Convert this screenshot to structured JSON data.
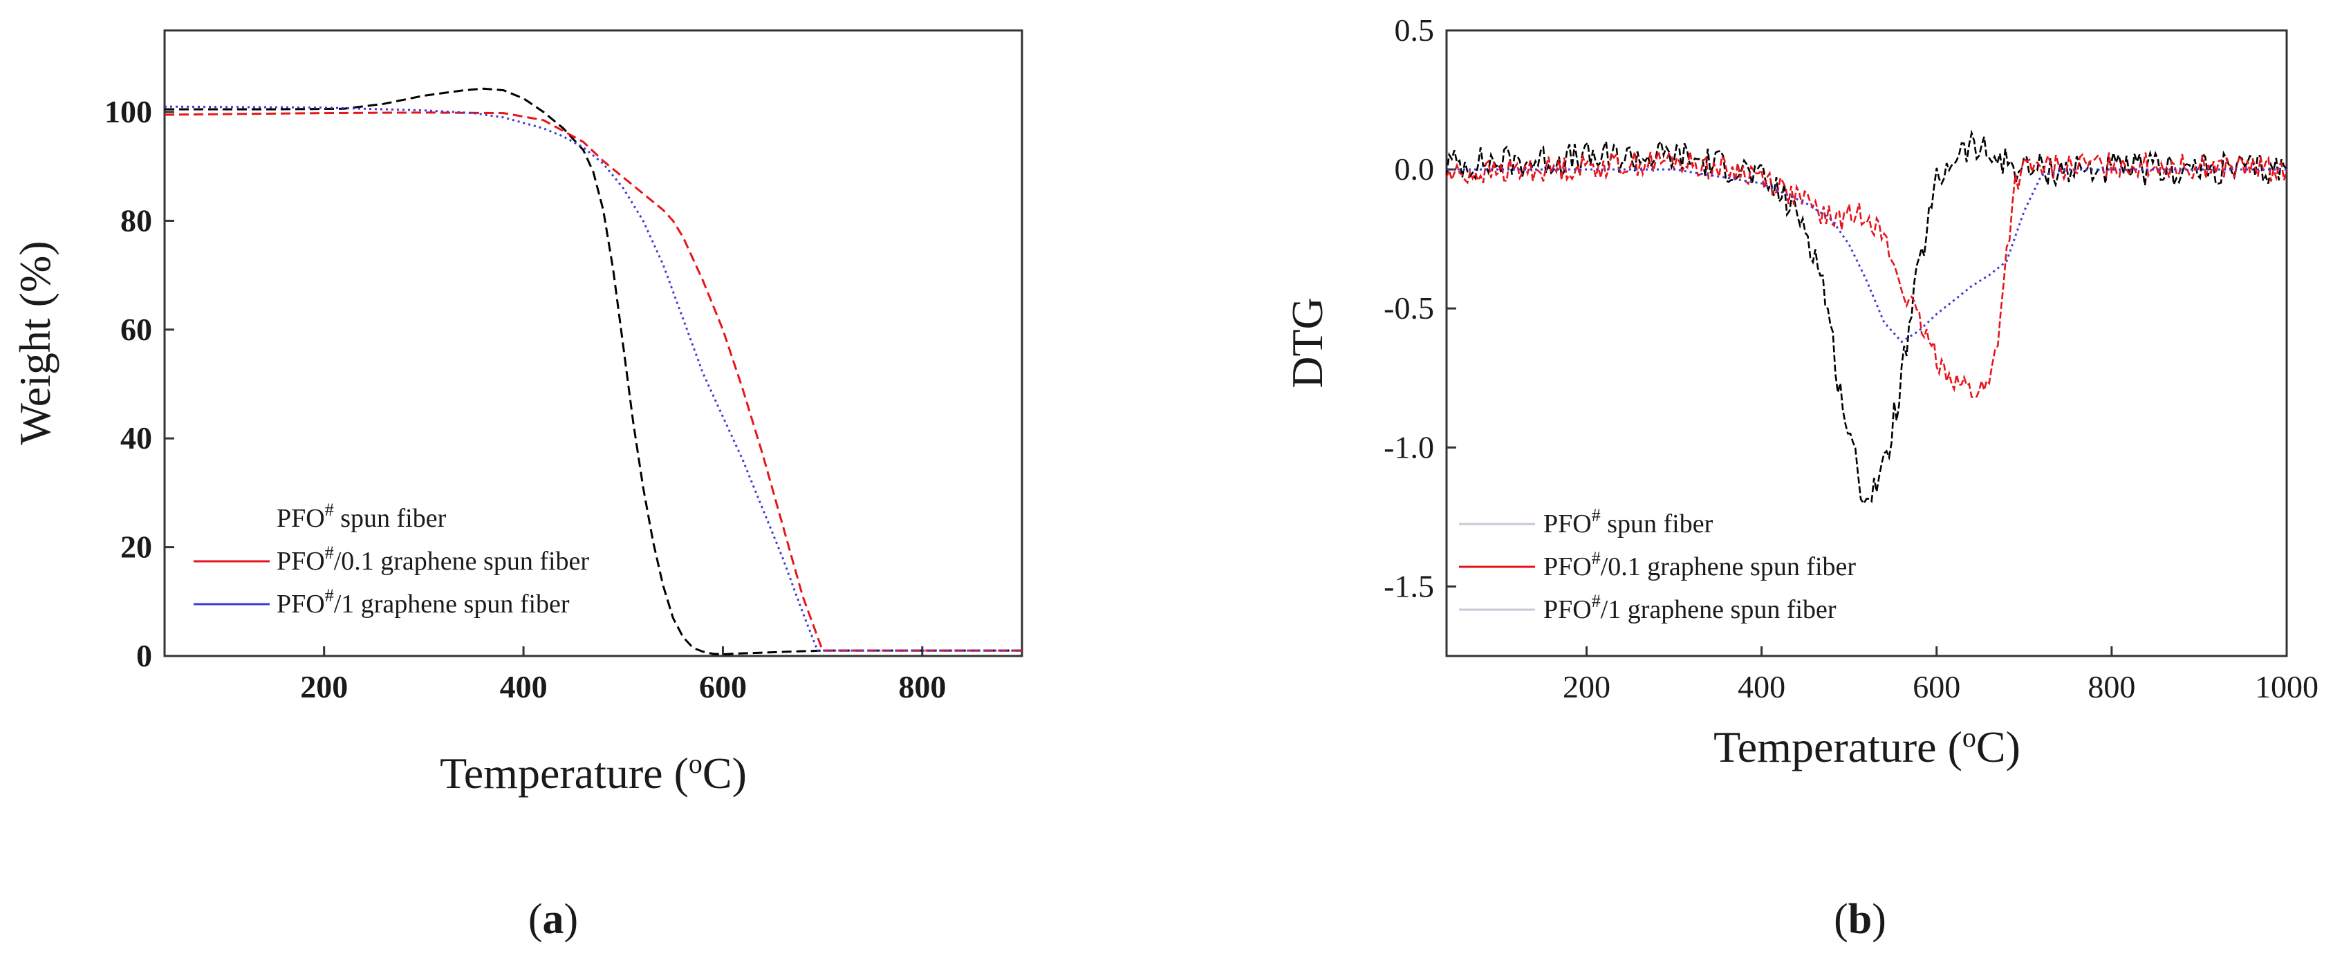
{
  "chart_data": [
    {
      "panel_label_open": "(",
      "panel_label_letter": "a",
      "panel_label_close": ")",
      "type": "line",
      "xlabel": "Temperature",
      "xlabel_unit_open": " (",
      "xlabel_unit_sup": "o",
      "xlabel_unit_letter": "C",
      "xlabel_unit_close": ")",
      "ylabel": "Weight (%)",
      "xlim": [
        40,
        900
      ],
      "ylim": [
        0,
        115
      ],
      "xticks": [
        200,
        400,
        600,
        800
      ],
      "yticks": [
        0,
        20,
        40,
        60,
        80,
        100
      ],
      "legend_position": "bottom-left",
      "series": [
        {
          "name": "PFO# spun fiber",
          "legend_prefix": "PFO",
          "legend_sup": "#",
          "legend_suffix": " spun fiber",
          "color": "#000000",
          "dash": "dashed",
          "x": [
            40,
            150,
            220,
            260,
            300,
            340,
            360,
            380,
            400,
            420,
            440,
            460,
            470,
            480,
            490,
            500,
            510,
            520,
            530,
            540,
            550,
            560,
            570,
            580,
            590,
            600,
            620,
            700,
            900
          ],
          "y": [
            100.5,
            100.5,
            100.6,
            101.5,
            103.0,
            104.0,
            104.3,
            104.0,
            102.5,
            100.0,
            97.0,
            93.0,
            89.0,
            82.0,
            71.0,
            57.0,
            43.0,
            31.0,
            21.0,
            13.0,
            7.0,
            3.5,
            1.5,
            0.8,
            0.4,
            0.3,
            0.5,
            1.0,
            1.0
          ]
        },
        {
          "name": "PFO#/0.1 graphene spun fiber",
          "legend_prefix": "PFO",
          "legend_sup": "#",
          "legend_suffix": "/0.1 graphene spun fiber",
          "color": "#e8141b",
          "dash": "dashed",
          "x": [
            40,
            200,
            300,
            380,
            420,
            460,
            480,
            500,
            520,
            540,
            550,
            560,
            580,
            600,
            620,
            640,
            660,
            680,
            700,
            900
          ],
          "y": [
            99.5,
            99.8,
            99.9,
            99.8,
            98.5,
            94.5,
            91.0,
            88.0,
            85.0,
            82.0,
            80.0,
            77.0,
            69.0,
            60.0,
            49.0,
            37.0,
            24.0,
            11.0,
            1.0,
            1.0
          ]
        },
        {
          "name": "PFO#/1 graphene spun fiber",
          "legend_prefix": "PFO",
          "legend_sup": "#",
          "legend_suffix": "/1 graphene spun fiber",
          "color": "#3b3bd9",
          "dash": "dotted",
          "x": [
            40,
            200,
            300,
            350,
            380,
            400,
            420,
            440,
            460,
            480,
            500,
            520,
            540,
            560,
            580,
            600,
            620,
            640,
            660,
            680,
            695,
            900
          ],
          "y": [
            101.0,
            100.8,
            100.3,
            99.8,
            99.0,
            98.0,
            97.0,
            95.5,
            93.5,
            90.5,
            86.0,
            80.0,
            72.0,
            62.0,
            52.0,
            44.0,
            36.0,
            27.0,
            18.0,
            8.0,
            1.0,
            1.0
          ]
        }
      ]
    },
    {
      "panel_label_open": "(",
      "panel_label_letter": "b",
      "panel_label_close": ")",
      "type": "line",
      "xlabel": "Temperature",
      "xlabel_unit_open": " (",
      "xlabel_unit_sup": "o",
      "xlabel_unit_letter": "C",
      "xlabel_unit_close": ")",
      "ylabel": "DTG",
      "xlim": [
        40,
        1000
      ],
      "ylim": [
        -1.75,
        0.5
      ],
      "xticks": [
        200,
        400,
        600,
        800,
        1000
      ],
      "yticks": [
        0.5,
        0.0,
        -0.5,
        -1.0,
        -1.5
      ],
      "ytick_labels": [
        "0.5",
        "0.0",
        "-0.5",
        "-1.0",
        "-1.5"
      ],
      "legend_position": "bottom-left",
      "series": [
        {
          "name": "PFO# spun fiber",
          "legend_prefix": "PFO",
          "legend_sup": "#",
          "legend_suffix": " spun fiber",
          "color": "#000000",
          "dash": "dashed",
          "noise": 0.06,
          "x": [
            40,
            300,
            380,
            420,
            450,
            470,
            490,
            510,
            520,
            540,
            560,
            580,
            600,
            620,
            640,
            660,
            700,
            1000
          ],
          "y": [
            0.02,
            0.05,
            0.0,
            -0.08,
            -0.2,
            -0.4,
            -0.8,
            -1.1,
            -1.18,
            -1.08,
            -0.75,
            -0.35,
            -0.05,
            0.05,
            0.08,
            0.05,
            0.0,
            0.0
          ]
        },
        {
          "name": "PFO#/0.1 graphene spun fiber",
          "legend_prefix": "PFO",
          "legend_sup": "#",
          "legend_suffix": "/0.1 graphene spun fiber",
          "color": "#e8141b",
          "dash": "dashed",
          "noise": 0.045,
          "x": [
            40,
            300,
            400,
            440,
            480,
            500,
            520,
            540,
            560,
            580,
            600,
            620,
            640,
            660,
            670,
            680,
            690,
            700,
            800,
            1000
          ],
          "y": [
            -0.02,
            0.03,
            -0.02,
            -0.1,
            -0.18,
            -0.17,
            -0.15,
            -0.25,
            -0.42,
            -0.55,
            -0.68,
            -0.75,
            -0.8,
            -0.78,
            -0.6,
            -0.3,
            -0.05,
            0.0,
            0.02,
            0.0
          ]
        },
        {
          "name": "PFO#/1 graphene spun fiber",
          "legend_prefix": "PFO",
          "legend_sup": "#",
          "legend_suffix": "/1 graphene spun fiber",
          "color": "#3b3bd9",
          "dash": "dotted",
          "noise": 0.0,
          "x": [
            40,
            300,
            400,
            450,
            480,
            500,
            520,
            540,
            560,
            580,
            600,
            620,
            640,
            660,
            680,
            700,
            720,
            750,
            1000
          ],
          "y": [
            0.0,
            0.0,
            -0.05,
            -0.12,
            -0.18,
            -0.27,
            -0.4,
            -0.55,
            -0.62,
            -0.58,
            -0.52,
            -0.47,
            -0.42,
            -0.38,
            -0.33,
            -0.15,
            -0.02,
            0.0,
            0.0
          ]
        }
      ]
    }
  ]
}
